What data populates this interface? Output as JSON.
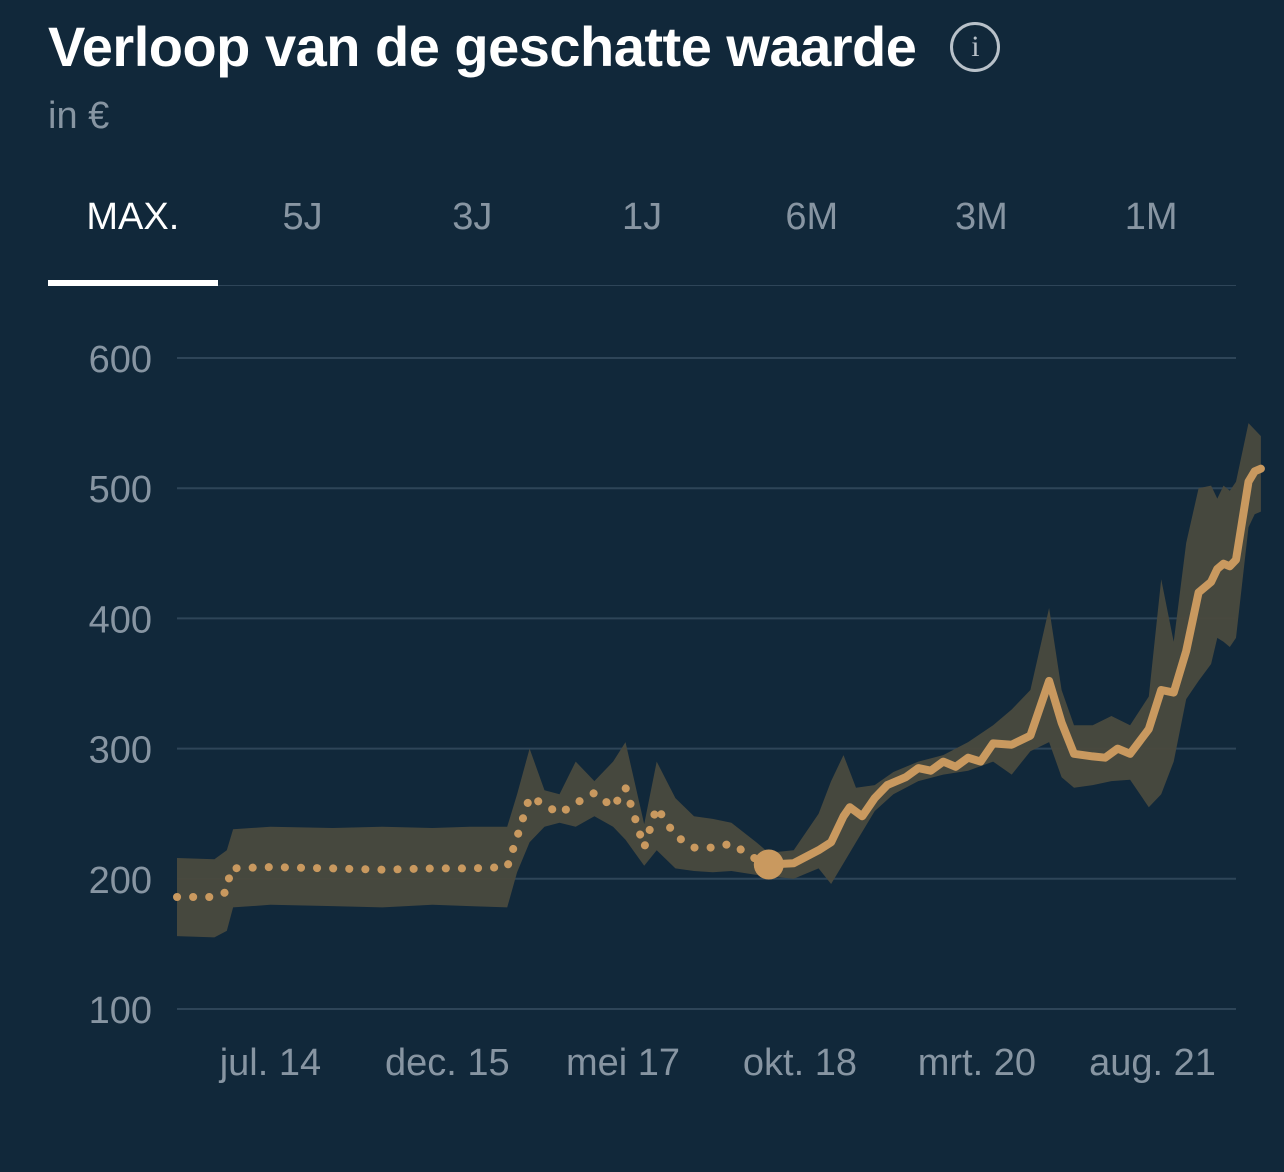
{
  "header": {
    "title": "Verloop van de geschatte waarde",
    "info_icon": "info-icon",
    "info_glyph": "i",
    "subtitle": "in €"
  },
  "tabs": [
    {
      "label": "MAX.",
      "active": true
    },
    {
      "label": "5J",
      "active": false
    },
    {
      "label": "3J",
      "active": false
    },
    {
      "label": "1J",
      "active": false
    },
    {
      "label": "6M",
      "active": false
    },
    {
      "label": "3M",
      "active": false
    },
    {
      "label": "1M",
      "active": false
    }
  ],
  "colors": {
    "background": "#11283a",
    "line": "#c9995f",
    "band": "#4a4a3e",
    "grid": "#2e4558",
    "text_muted": "#8795a2"
  },
  "chart_data": {
    "type": "line",
    "ylim": [
      100,
      600
    ],
    "yticks": [
      100,
      200,
      300,
      400,
      500,
      600
    ],
    "xlim": [
      2013.75,
      2022.25
    ],
    "xticks": [
      {
        "x": 2014.5,
        "label": "jul. 14"
      },
      {
        "x": 2015.92,
        "label": "dec. 15"
      },
      {
        "x": 2017.33,
        "label": "mei 17"
      },
      {
        "x": 2018.75,
        "label": "okt. 18"
      },
      {
        "x": 2020.17,
        "label": "mrt. 20"
      },
      {
        "x": 2021.58,
        "label": "aug. 21"
      }
    ],
    "grid": true,
    "series": [
      {
        "style": "dotted",
        "points": [
          [
            2013.75,
            186
          ],
          [
            2014.05,
            186
          ],
          [
            2014.15,
            190
          ],
          [
            2014.18,
            208
          ],
          [
            2014.5,
            209
          ],
          [
            2015.0,
            208
          ],
          [
            2015.4,
            207
          ],
          [
            2015.8,
            208
          ],
          [
            2016.1,
            208
          ],
          [
            2016.4,
            209
          ],
          [
            2016.5,
            238
          ],
          [
            2016.58,
            263
          ],
          [
            2016.7,
            257
          ],
          [
            2016.82,
            250
          ],
          [
            2016.95,
            258
          ],
          [
            2017.1,
            266
          ],
          [
            2017.25,
            255
          ],
          [
            2017.35,
            270
          ],
          [
            2017.5,
            224
          ],
          [
            2017.6,
            255
          ],
          [
            2017.75,
            233
          ],
          [
            2017.9,
            224
          ],
          [
            2018.05,
            224
          ],
          [
            2018.2,
            227
          ],
          [
            2018.4,
            215
          ],
          [
            2018.5,
            211
          ]
        ]
      },
      {
        "style": "solid",
        "points": [
          [
            2018.5,
            211
          ],
          [
            2018.7,
            212
          ],
          [
            2018.9,
            222
          ],
          [
            2019.0,
            228
          ],
          [
            2019.1,
            248
          ],
          [
            2019.15,
            255
          ],
          [
            2019.25,
            248
          ],
          [
            2019.35,
            262
          ],
          [
            2019.45,
            272
          ],
          [
            2019.6,
            278
          ],
          [
            2019.7,
            285
          ],
          [
            2019.8,
            283
          ],
          [
            2019.9,
            290
          ],
          [
            2020.0,
            286
          ],
          [
            2020.1,
            293
          ],
          [
            2020.2,
            290
          ],
          [
            2020.3,
            304
          ],
          [
            2020.45,
            303
          ],
          [
            2020.6,
            310
          ],
          [
            2020.75,
            352
          ],
          [
            2020.85,
            320
          ],
          [
            2020.95,
            296
          ],
          [
            2021.1,
            294
          ],
          [
            2021.2,
            293
          ],
          [
            2021.3,
            300
          ],
          [
            2021.4,
            296
          ],
          [
            2021.55,
            315
          ],
          [
            2021.65,
            345
          ],
          [
            2021.75,
            343
          ],
          [
            2021.85,
            375
          ],
          [
            2021.95,
            420
          ],
          [
            2022.05,
            428
          ],
          [
            2022.1,
            438
          ],
          [
            2022.15,
            442
          ],
          [
            2022.2,
            440
          ],
          [
            2022.25,
            445
          ],
          [
            2022.35,
            505
          ],
          [
            2022.4,
            513
          ],
          [
            2022.45,
            515
          ]
        ]
      }
    ],
    "band": {
      "upper": [
        [
          2013.75,
          216
        ],
        [
          2014.05,
          215
        ],
        [
          2014.15,
          222
        ],
        [
          2014.2,
          238
        ],
        [
          2014.5,
          240
        ],
        [
          2015.0,
          239
        ],
        [
          2015.4,
          240
        ],
        [
          2015.8,
          239
        ],
        [
          2016.1,
          240
        ],
        [
          2016.4,
          240
        ],
        [
          2016.48,
          265
        ],
        [
          2016.58,
          300
        ],
        [
          2016.7,
          268
        ],
        [
          2016.82,
          265
        ],
        [
          2016.95,
          290
        ],
        [
          2017.1,
          275
        ],
        [
          2017.25,
          290
        ],
        [
          2017.35,
          305
        ],
        [
          2017.5,
          242
        ],
        [
          2017.6,
          290
        ],
        [
          2017.75,
          262
        ],
        [
          2017.9,
          248
        ],
        [
          2018.05,
          246
        ],
        [
          2018.2,
          243
        ],
        [
          2018.4,
          228
        ],
        [
          2018.5,
          220
        ],
        [
          2018.7,
          222
        ],
        [
          2018.9,
          250
        ],
        [
          2019.0,
          275
        ],
        [
          2019.1,
          295
        ],
        [
          2019.2,
          270
        ],
        [
          2019.35,
          272
        ],
        [
          2019.5,
          282
        ],
        [
          2019.7,
          290
        ],
        [
          2019.9,
          295
        ],
        [
          2020.1,
          305
        ],
        [
          2020.3,
          318
        ],
        [
          2020.45,
          330
        ],
        [
          2020.6,
          345
        ],
        [
          2020.75,
          408
        ],
        [
          2020.85,
          345
        ],
        [
          2020.95,
          318
        ],
        [
          2021.1,
          318
        ],
        [
          2021.25,
          325
        ],
        [
          2021.4,
          318
        ],
        [
          2021.55,
          340
        ],
        [
          2021.65,
          430
        ],
        [
          2021.75,
          382
        ],
        [
          2021.85,
          458
        ],
        [
          2021.95,
          500
        ],
        [
          2022.05,
          502
        ],
        [
          2022.1,
          492
        ],
        [
          2022.15,
          502
        ],
        [
          2022.2,
          498
        ],
        [
          2022.25,
          505
        ],
        [
          2022.35,
          550
        ],
        [
          2022.4,
          545
        ],
        [
          2022.45,
          540
        ]
      ],
      "lower": [
        [
          2013.75,
          156
        ],
        [
          2014.05,
          155
        ],
        [
          2014.15,
          160
        ],
        [
          2014.2,
          178
        ],
        [
          2014.5,
          180
        ],
        [
          2015.0,
          179
        ],
        [
          2015.4,
          178
        ],
        [
          2015.8,
          180
        ],
        [
          2016.1,
          179
        ],
        [
          2016.4,
          178
        ],
        [
          2016.48,
          205
        ],
        [
          2016.58,
          228
        ],
        [
          2016.7,
          240
        ],
        [
          2016.82,
          243
        ],
        [
          2016.95,
          240
        ],
        [
          2017.1,
          248
        ],
        [
          2017.25,
          240
        ],
        [
          2017.35,
          230
        ],
        [
          2017.5,
          210
        ],
        [
          2017.6,
          222
        ],
        [
          2017.75,
          208
        ],
        [
          2017.9,
          206
        ],
        [
          2018.05,
          205
        ],
        [
          2018.2,
          206
        ],
        [
          2018.4,
          203
        ],
        [
          2018.5,
          202
        ],
        [
          2018.7,
          200
        ],
        [
          2018.9,
          208
        ],
        [
          2019.0,
          196
        ],
        [
          2019.1,
          212
        ],
        [
          2019.2,
          228
        ],
        [
          2019.35,
          252
        ],
        [
          2019.5,
          265
        ],
        [
          2019.7,
          275
        ],
        [
          2019.9,
          280
        ],
        [
          2020.1,
          283
        ],
        [
          2020.3,
          290
        ],
        [
          2020.45,
          280
        ],
        [
          2020.6,
          298
        ],
        [
          2020.75,
          305
        ],
        [
          2020.85,
          278
        ],
        [
          2020.95,
          270
        ],
        [
          2021.1,
          272
        ],
        [
          2021.25,
          275
        ],
        [
          2021.4,
          276
        ],
        [
          2021.55,
          255
        ],
        [
          2021.65,
          265
        ],
        [
          2021.75,
          290
        ],
        [
          2021.85,
          338
        ],
        [
          2021.95,
          352
        ],
        [
          2022.05,
          365
        ],
        [
          2022.1,
          385
        ],
        [
          2022.15,
          382
        ],
        [
          2022.2,
          378
        ],
        [
          2022.25,
          385
        ],
        [
          2022.35,
          470
        ],
        [
          2022.4,
          480
        ],
        [
          2022.45,
          482
        ]
      ]
    },
    "marker": {
      "x": 2018.5,
      "y": 211
    }
  }
}
